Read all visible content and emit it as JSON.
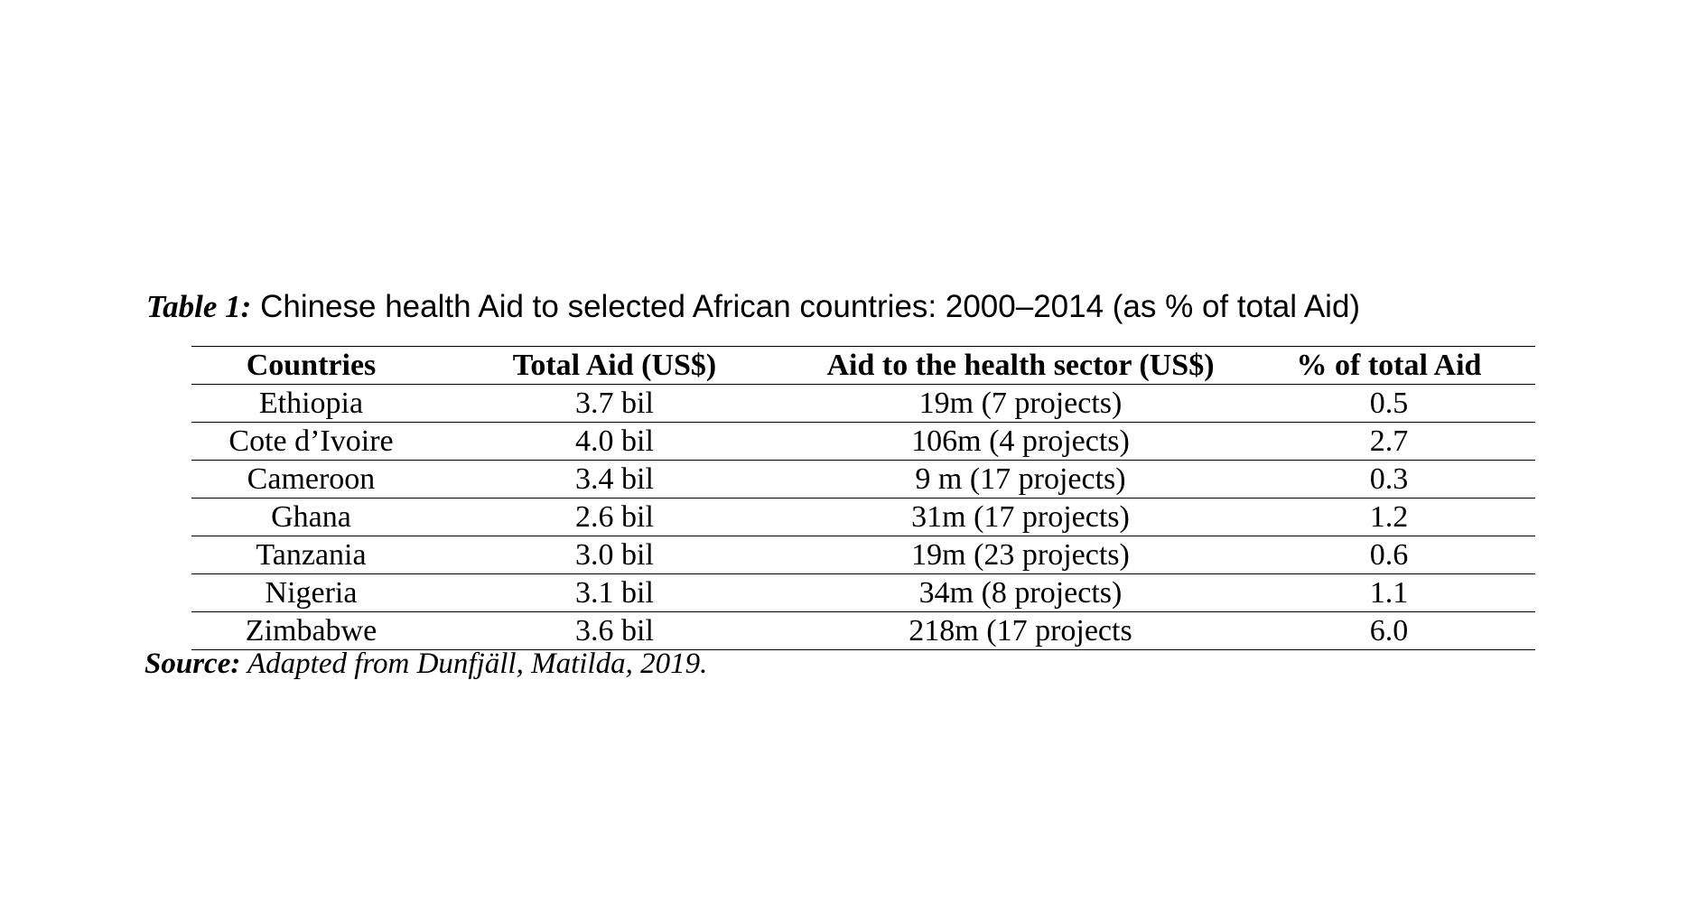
{
  "caption": {
    "label": "Table 1:",
    "text": "Chinese health Aid to selected African countries: 2000–2014 (as % of total Aid)"
  },
  "table": {
    "headers": [
      "Countries",
      "Total Aid (US$)",
      "Aid to the health sector (US$)",
      "% of total Aid"
    ],
    "rows": [
      [
        "Ethiopia",
        "3.7 bil",
        "19m (7 projects)",
        "0.5"
      ],
      [
        "Cote d’Ivoire",
        "4.0 bil",
        "106m (4 projects)",
        "2.7"
      ],
      [
        "Cameroon",
        "3.4 bil",
        "9 m (17 projects)",
        "0.3"
      ],
      [
        "Ghana",
        "2.6 bil",
        "31m (17 projects)",
        "1.2"
      ],
      [
        "Tanzania",
        "3.0 bil",
        "19m (23 projects)",
        "0.6"
      ],
      [
        "Nigeria",
        "3.1 bil",
        "34m (8 projects)",
        "1.1"
      ],
      [
        "Zimbabwe",
        "3.6 bil",
        "218m (17 projects",
        "6.0"
      ]
    ]
  },
  "source": {
    "label": "Source:",
    "text": "Adapted from Dunfjäll, Matilda, 2019."
  },
  "chart_data": {
    "type": "table",
    "title": "Chinese health Aid to selected African countries: 2000–2014 (as % of total Aid)",
    "columns": [
      "Countries",
      "Total Aid (US$)",
      "Aid to the health sector (US$)",
      "% of total Aid"
    ],
    "rows": [
      [
        "Ethiopia",
        "3.7 bil",
        "19m (7 projects)",
        "0.5"
      ],
      [
        "Cote d’Ivoire",
        "4.0 bil",
        "106m (4 projects)",
        "2.7"
      ],
      [
        "Cameroon",
        "3.4 bil",
        "9 m (17 projects)",
        "0.3"
      ],
      [
        "Ghana",
        "2.6 bil",
        "31m (17 projects)",
        "1.2"
      ],
      [
        "Tanzania",
        "3.0 bil",
        "19m (23 projects)",
        "0.6"
      ],
      [
        "Nigeria",
        "3.1 bil",
        "34m (8 projects)",
        "1.1"
      ],
      [
        "Zimbabwe",
        "3.6 bil",
        "218m (17 projects",
        "6.0"
      ]
    ]
  }
}
